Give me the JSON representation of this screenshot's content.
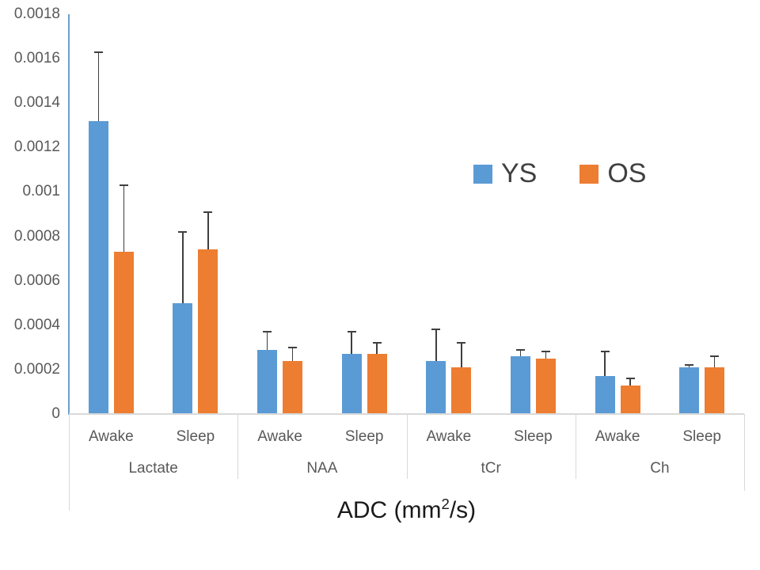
{
  "colors": {
    "ys_blue": "#5B9BD5",
    "os_orange": "#ED7D31",
    "y_axis_line": "#6FA0CF",
    "axis_gray": "#D9D9D9",
    "tick_text": "#595959",
    "error_bar": "#3F3F3F",
    "title_text": "#1A1A1A"
  },
  "legend": {
    "items": [
      {
        "label": "YS",
        "color": "#5B9BD5"
      },
      {
        "label": "OS",
        "color": "#ED7D31"
      }
    ]
  },
  "axis_title": {
    "prefix": "ADC (mm",
    "superscript": "2",
    "suffix": "/s)"
  },
  "chart_data": {
    "type": "bar",
    "title": "",
    "xlabel": "ADC (mm2/s)",
    "ylabel": "",
    "ylim": [
      0,
      0.0018
    ],
    "ytick_interval": 0.0002,
    "ytick_labels": [
      "0",
      "0.0002",
      "0.0004",
      "0.0006",
      "0.0008",
      "0.001",
      "0.0012",
      "0.0014",
      "0.0016",
      "0.0018"
    ],
    "grid": false,
    "legend_position": "center-right",
    "error_bars": "plus-direction-only",
    "groups": [
      "Lactate",
      "NAA",
      "tCr",
      "Ch"
    ],
    "conditions": [
      "Awake",
      "Sleep"
    ],
    "categories": [
      "Lactate Awake",
      "Lactate Sleep",
      "NAA Awake",
      "NAA Sleep",
      "tCr Awake",
      "tCr Sleep",
      "Ch Awake",
      "Ch Sleep"
    ],
    "series": [
      {
        "name": "YS",
        "color": "#5B9BD5",
        "values": [
          0.00132,
          0.0005,
          0.00029,
          0.00027,
          0.00024,
          0.00026,
          0.00017,
          0.00021
        ],
        "errors": [
          0.00031,
          0.00032,
          8e-05,
          0.0001,
          0.00014,
          3e-05,
          0.00011,
          1e-05
        ]
      },
      {
        "name": "OS",
        "color": "#ED7D31",
        "values": [
          0.00073,
          0.00074,
          0.00024,
          0.00027,
          0.00021,
          0.00025,
          0.00013,
          0.00021
        ],
        "errors": [
          0.0003,
          0.00017,
          6e-05,
          5e-05,
          0.00011,
          3e-05,
          3e-05,
          5e-05
        ]
      }
    ]
  }
}
